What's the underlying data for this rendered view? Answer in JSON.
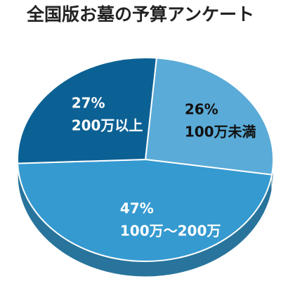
{
  "chart_data": {
    "type": "pie",
    "title": "全国版お墓の予算アンケート",
    "categories": [
      "100万未満",
      "100万～200万",
      "200万以上"
    ],
    "values": [
      26,
      47,
      27
    ],
    "value_labels": [
      "26%",
      "47%",
      "27%"
    ],
    "colors": [
      "#5aabd7",
      "#359ad0",
      "#0c6194"
    ],
    "label_colors": [
      "#111111",
      "#ffffff",
      "#ffffff"
    ]
  }
}
